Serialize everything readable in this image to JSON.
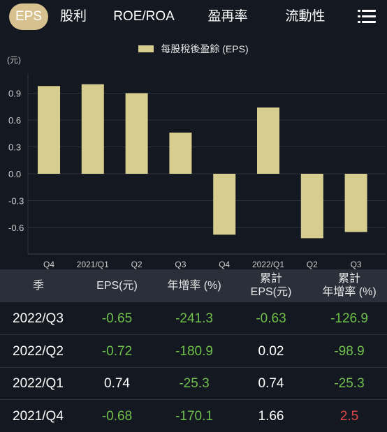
{
  "tabs": [
    {
      "label": "EPS",
      "active": true
    },
    {
      "label": "股利",
      "active": false
    },
    {
      "label": "ROE/ROA",
      "active": false
    },
    {
      "label": "盈再率",
      "active": false
    },
    {
      "label": "流動性",
      "active": false
    }
  ],
  "menu_icon": "list-menu-icon",
  "colors": {
    "accent": "#d7c28f",
    "bar": "#d6cd8e",
    "green": "#6fbf4b",
    "red": "#e04646",
    "bg": "#141821",
    "header_bg": "#2a2f3a"
  },
  "chart_data": {
    "type": "bar",
    "legend": "每股稅後盈餘 (EPS)",
    "unit_label": "(元)",
    "categories": [
      "Q4",
      "2021/Q1",
      "Q2",
      "Q3",
      "Q4",
      "2022/Q1",
      "Q2",
      "Q3"
    ],
    "series": [
      {
        "name": "每股稅後盈餘 (EPS)",
        "values": [
          0.98,
          1.0,
          0.9,
          0.46,
          -0.68,
          0.74,
          -0.72,
          -0.65
        ]
      }
    ],
    "yticks": [
      "0.9",
      "0.6",
      "0.3",
      "0.0",
      "-0.3",
      "-0.6"
    ],
    "ylim": [
      -0.8,
      1.1
    ],
    "grid": true
  },
  "table": {
    "headers": [
      {
        "line1": "季",
        "line2": ""
      },
      {
        "line1": "EPS(元)",
        "line2": ""
      },
      {
        "line1": "年增率 (%)",
        "line2": ""
      },
      {
        "line1": "累計",
        "line2": "EPS(元)"
      },
      {
        "line1": "累計",
        "line2": "年增率 (%)"
      }
    ],
    "rows": [
      {
        "season": "2022/Q3",
        "eps": "-0.65",
        "yoy": "-241.3",
        "cum_eps": "-0.63",
        "cum_yoy": "-126.9",
        "c_eps": "green",
        "c_yoy": "green",
        "c_cum_eps": "green",
        "c_cum_yoy": "green"
      },
      {
        "season": "2022/Q2",
        "eps": "-0.72",
        "yoy": "-180.9",
        "cum_eps": "0.02",
        "cum_yoy": "-98.9",
        "c_eps": "green",
        "c_yoy": "green",
        "c_cum_eps": "pos",
        "c_cum_yoy": "green"
      },
      {
        "season": "2022/Q1",
        "eps": "0.74",
        "yoy": "-25.3",
        "cum_eps": "0.74",
        "cum_yoy": "-25.3",
        "c_eps": "pos",
        "c_yoy": "green",
        "c_cum_eps": "pos",
        "c_cum_yoy": "green"
      },
      {
        "season": "2021/Q4",
        "eps": "-0.68",
        "yoy": "-170.1",
        "cum_eps": "1.66",
        "cum_yoy": "2.5",
        "c_eps": "green",
        "c_yoy": "green",
        "c_cum_eps": "pos",
        "c_cum_yoy": "red"
      }
    ]
  }
}
